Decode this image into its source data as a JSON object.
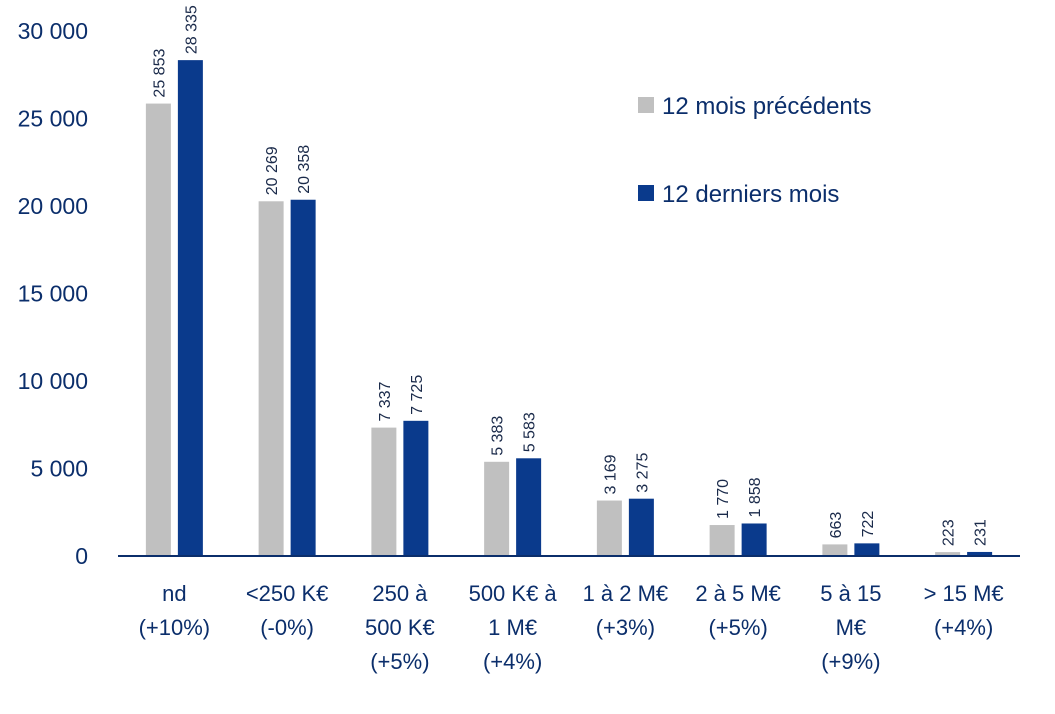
{
  "chart_data": {
    "type": "bar",
    "categories": [
      [
        "nd",
        "(+10%)"
      ],
      [
        "<250 K€",
        "(-0%)"
      ],
      [
        "250 à",
        "500 K€",
        "(+5%)"
      ],
      [
        "500 K€ à",
        "1 M€",
        "(+4%)"
      ],
      [
        "1 à 2 M€",
        "(+3%)"
      ],
      [
        "2 à 5 M€",
        "(+5%)"
      ],
      [
        "5 à 15",
        "M€",
        "(+9%)"
      ],
      [
        "> 15 M€",
        "(+4%)"
      ]
    ],
    "series": [
      {
        "name": "12 mois précédents",
        "color": "#c0c0c0",
        "values": [
          25853,
          20269,
          7337,
          5383,
          3169,
          1770,
          663,
          223
        ],
        "labels": [
          "25 853",
          "20 269",
          "7 337",
          "5 383",
          "3 169",
          "1 770",
          "663",
          "223"
        ]
      },
      {
        "name": "12 derniers mois",
        "color": "#0a3a8c",
        "values": [
          28335,
          20358,
          7725,
          5583,
          3275,
          1858,
          722,
          231
        ],
        "labels": [
          "28 335",
          "20 358",
          "7 725",
          "5 583",
          "3 275",
          "1 858",
          "722",
          "231"
        ]
      }
    ],
    "ylim": [
      0,
      30000
    ],
    "yticks": [
      0,
      5000,
      10000,
      15000,
      20000,
      25000,
      30000
    ],
    "ytick_labels": [
      "0",
      "5 000",
      "10 000",
      "15 000",
      "20 000",
      "25 000",
      "30 000"
    ],
    "legend_position": "top-right",
    "grid": false,
    "axis_color": "#0b2e6b"
  }
}
